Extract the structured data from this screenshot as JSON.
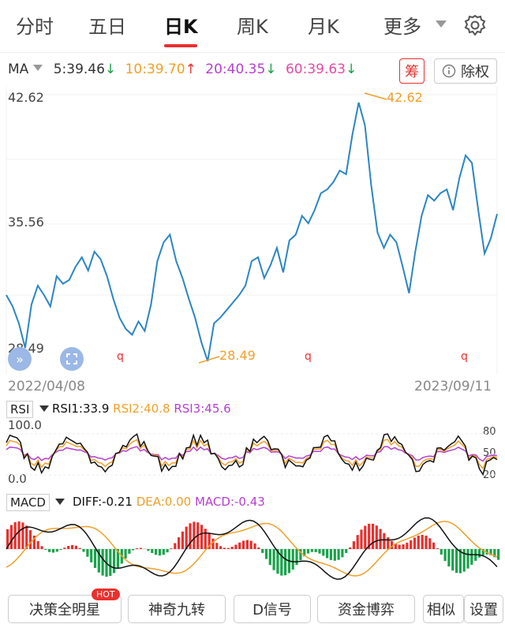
{
  "tabs": [
    {
      "label": "分时"
    },
    {
      "label": "五日"
    },
    {
      "label": "日K"
    },
    {
      "label": "周K"
    },
    {
      "label": "月K"
    },
    {
      "label": "更多"
    }
  ],
  "ma": {
    "label": "MA",
    "items": [
      {
        "text": "5:39.46",
        "arrow": "↓",
        "color": "#333333"
      },
      {
        "text": "10:39.70",
        "arrow": "↑",
        "color": "#f0a028"
      },
      {
        "text": "20:40.35",
        "arrow": "↓",
        "color": "#b53fd1"
      },
      {
        "text": "60:39.63",
        "arrow": "↓",
        "color": "#e64aa6"
      }
    ],
    "chou": "筹",
    "chuquan": "除权",
    "info_icon": "info-circle-icon"
  },
  "price_chart": {
    "y_labels": [
      "42.62",
      "35.56",
      "28.49"
    ],
    "max_label": "42.62",
    "min_label": "28.49",
    "start_date": "2022/04/08",
    "end_date": "2023/09/11",
    "q_marker": "q",
    "color": "#2b86c5"
  },
  "rsi": {
    "name": "RSI",
    "rsi1": "RSI1:33.9",
    "rsi2": "RSI2:40.8",
    "rsi3": "RSI3:45.6",
    "top": "100.0",
    "bottom": "0.0",
    "r80": "80",
    "r50": "50",
    "r20": "20"
  },
  "macd": {
    "name": "MACD",
    "diff": "DIFF:-0.21",
    "dea": "DEA:0.00",
    "macd": "MACD:-0.43"
  },
  "buttons": {
    "b1": "决策全明星",
    "hot": "HOT",
    "b2": "神奇九转",
    "b3": "D信号",
    "b4": "资金博弈",
    "b5": "相似",
    "b6": "设置"
  },
  "chart_data": {
    "type": "line",
    "title": "",
    "x_range": [
      "2022/04/08",
      "2023/09/11"
    ],
    "ylim": [
      28.49,
      42.62
    ],
    "series": [
      {
        "values": [
          32,
          31.4,
          30.5,
          29.2,
          31.5,
          32.5,
          32,
          31.4,
          33,
          32.6,
          32.8,
          33.5,
          34,
          33.3,
          34.3,
          33.9,
          33,
          31.8,
          30.8,
          30.2,
          29.9,
          30.6,
          30.1,
          31.5,
          33.8,
          34.8,
          35.2,
          33.8,
          32.9,
          31.8,
          30.8,
          29.5,
          28.5,
          30.5,
          30.8,
          31.2,
          31.6,
          32,
          32.5,
          33.8,
          34,
          32.9,
          33.6,
          34.5,
          33.2,
          34.9,
          35.2,
          36.2,
          35.8,
          36.5,
          37.4,
          37.6,
          38,
          38.6,
          38.4,
          40.5,
          42.2,
          41,
          37.8,
          35.3,
          34.5,
          35.2,
          34.8,
          33.5,
          32.1,
          34.3,
          36.2,
          37.3,
          37,
          37.4,
          37.6,
          36.5,
          38.2,
          39.4,
          39,
          36.5,
          34.2,
          35,
          36.3
        ]
      }
    ],
    "rsi_series": [
      {
        "name": "RSI1",
        "color": "#111111"
      },
      {
        "name": "RSI2",
        "color": "#f0a028"
      },
      {
        "name": "RSI3",
        "color": "#b53fd1"
      }
    ],
    "macd_series": [
      {
        "name": "DIFF",
        "color": "#111111"
      },
      {
        "name": "DEA",
        "color": "#f0a028"
      },
      {
        "name": "MACD",
        "color": "#b53fd1"
      }
    ]
  }
}
